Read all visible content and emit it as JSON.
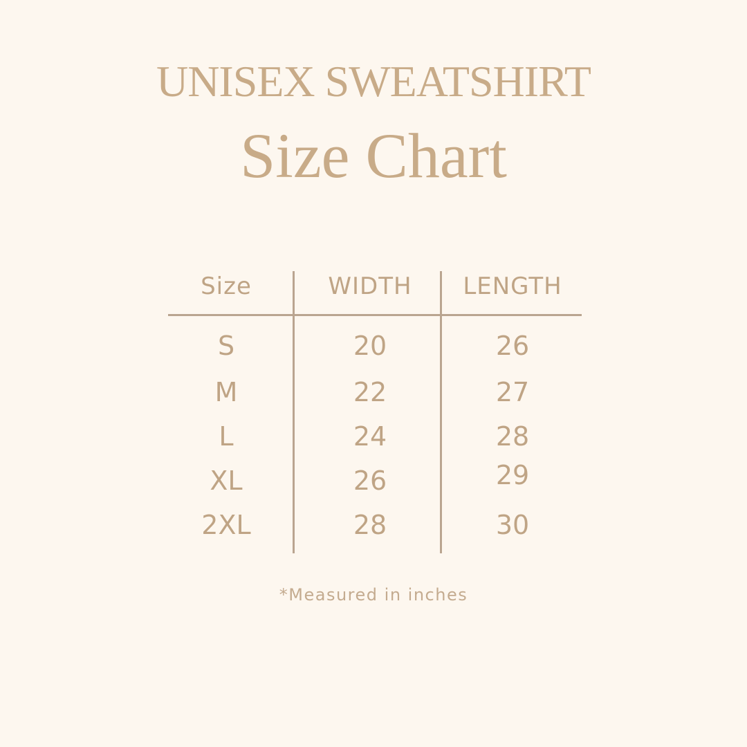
{
  "title": {
    "line1": "UNISEX SWEATSHIRT",
    "line2": "Size Chart"
  },
  "table": {
    "headers": [
      "Size",
      "WIDTH",
      "LENGTH"
    ],
    "rows": [
      [
        "S",
        "20",
        "26"
      ],
      [
        "M",
        "22",
        "27"
      ],
      [
        "L",
        "24",
        "28"
      ],
      [
        "XL",
        "26",
        "29"
      ],
      [
        "2XL",
        "28",
        "30"
      ]
    ]
  },
  "footnote": "*Measured in inches",
  "colors": {
    "background": "#fdf7ef",
    "text": "#c4a98a",
    "lines": "#baa590"
  }
}
